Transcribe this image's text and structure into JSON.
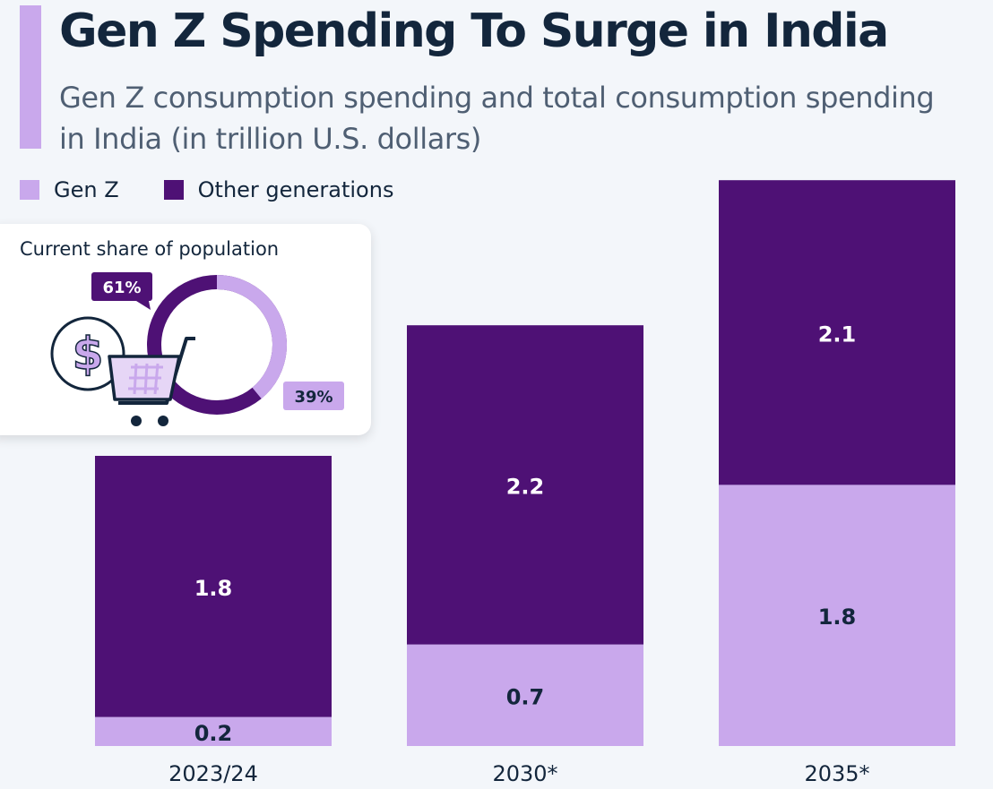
{
  "title": "Gen Z Spending To Surge in India",
  "subtitle": "Gen Z consumption spending and total consumption spending in India (in trillion U.S. dollars)",
  "legend": [
    {
      "label": "Gen Z",
      "color": "#c9a8ec"
    },
    {
      "label": "Other generations",
      "color": "#4e1175"
    }
  ],
  "population_card": {
    "title": "Current share of population",
    "other_share_label": "61%",
    "genz_share_label": "39%",
    "other_share": 61,
    "genz_share": 39,
    "icons": [
      "dollar-coin-icon",
      "shopping-cart-icon"
    ]
  },
  "chart_data": {
    "type": "bar",
    "stacked": true,
    "categories": [
      "2023/24",
      "2030*",
      "2035*"
    ],
    "series": [
      {
        "name": "Gen Z",
        "values": [
          0.2,
          0.7,
          1.8
        ],
        "labels": [
          "0.2",
          "0.7",
          "1.8"
        ],
        "color": "#c9a8ec"
      },
      {
        "name": "Other generations",
        "values": [
          1.8,
          2.2,
          2.1
        ],
        "labels": [
          "1.8",
          "2.2",
          "2.1"
        ],
        "color": "#4e1175"
      }
    ],
    "ylim": [
      0,
      3.9
    ],
    "grid": false,
    "legend_position": "top-left"
  }
}
